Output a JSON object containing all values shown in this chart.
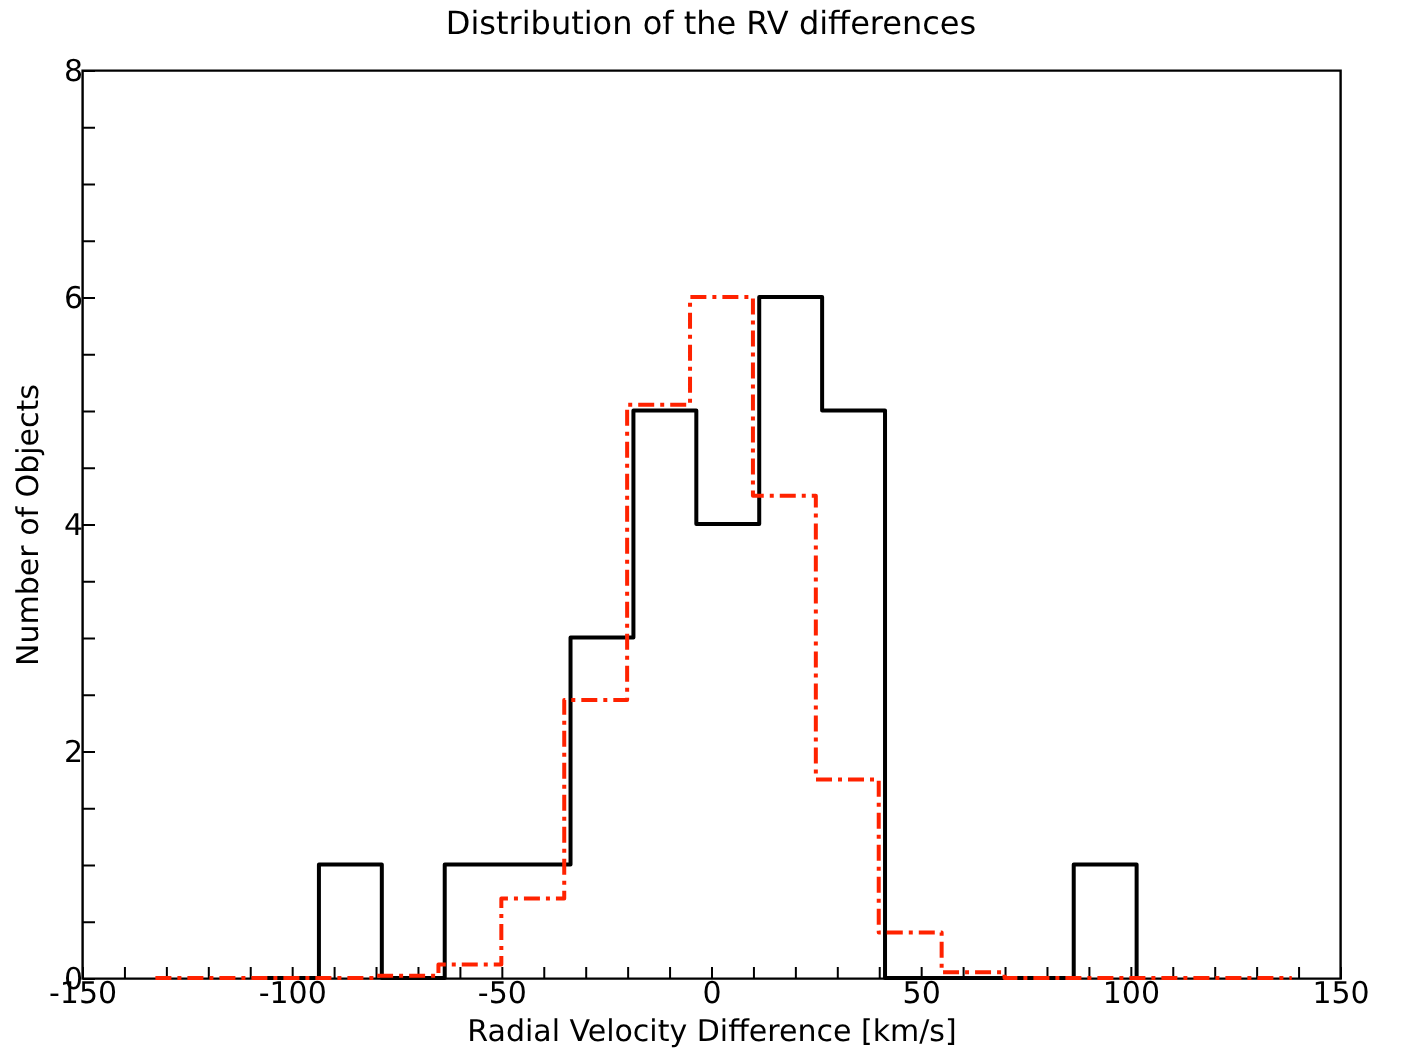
{
  "chart_data": {
    "type": "step",
    "title": "Distribution of the RV differences",
    "xlabel": "Radial Velocity Difference [km/s]",
    "ylabel": "Number of Objects",
    "xlim": [
      -150,
      150
    ],
    "ylim": [
      0,
      8
    ],
    "xticks": [
      -150,
      {
        "value": -140,
        "label": null
      },
      {
        "value": -130,
        "label": null
      },
      {
        "value": -120,
        "label": null
      },
      {
        "value": -110,
        "label": null
      },
      -100,
      {
        "value": -90,
        "label": null
      },
      {
        "value": -80,
        "label": null
      },
      {
        "value": -70,
        "label": null
      },
      {
        "value": -60,
        "label": null
      },
      -50,
      {
        "value": -40,
        "label": null
      },
      {
        "value": -30,
        "label": null
      },
      {
        "value": -20,
        "label": null
      },
      {
        "value": -10,
        "label": null
      },
      0,
      {
        "value": 10,
        "label": null
      },
      {
        "value": 20,
        "label": null
      },
      {
        "value": 30,
        "label": null
      },
      {
        "value": 40,
        "label": null
      },
      50,
      {
        "value": 60,
        "label": null
      },
      {
        "value": 70,
        "label": null
      },
      {
        "value": 80,
        "label": null
      },
      {
        "value": 90,
        "label": null
      },
      100,
      {
        "value": 110,
        "label": null
      },
      {
        "value": 120,
        "label": null
      },
      {
        "value": 130,
        "label": null
      },
      {
        "value": 140,
        "label": null
      },
      150
    ],
    "yticks": [
      0,
      {
        "value": 0.5,
        "label": null
      },
      {
        "value": 1,
        "label": null
      },
      {
        "value": 1.5,
        "label": null
      },
      2,
      {
        "value": 2.5,
        "label": null
      },
      {
        "value": 3,
        "label": null
      },
      {
        "value": 3.5,
        "label": null
      },
      4,
      {
        "value": 4.5,
        "label": null
      },
      {
        "value": 5,
        "label": null
      },
      {
        "value": 5.5,
        "label": null
      },
      6,
      {
        "value": 6.5,
        "label": null
      },
      {
        "value": 7,
        "label": null
      },
      {
        "value": 7.5,
        "label": null
      },
      8
    ],
    "series": [
      {
        "color": "#000000",
        "line_style": "solid",
        "x": [
          -108.5,
          -93.5,
          -78.5,
          -63.5,
          -48.5,
          -33.5,
          -18.5,
          -3.5,
          11.5,
          26.5,
          41.5,
          56.5,
          71.5,
          86.5,
          101.5
        ],
        "values": [
          0,
          1,
          0,
          1,
          1,
          3,
          5,
          4,
          6,
          5,
          0,
          0,
          0,
          1,
          0
        ]
      },
      {
        "color": "#ff2200",
        "line_style": "dashed",
        "x": [
          -132.5,
          -80,
          -65,
          -50,
          -35,
          -20,
          -5,
          10,
          25,
          40,
          55,
          70,
          138.5
        ],
        "values": [
          0,
          0.02,
          0.12,
          0.7,
          2.45,
          5.05,
          6.0,
          4.25,
          1.75,
          0.4,
          0.05,
          0,
          0
        ]
      }
    ]
  }
}
